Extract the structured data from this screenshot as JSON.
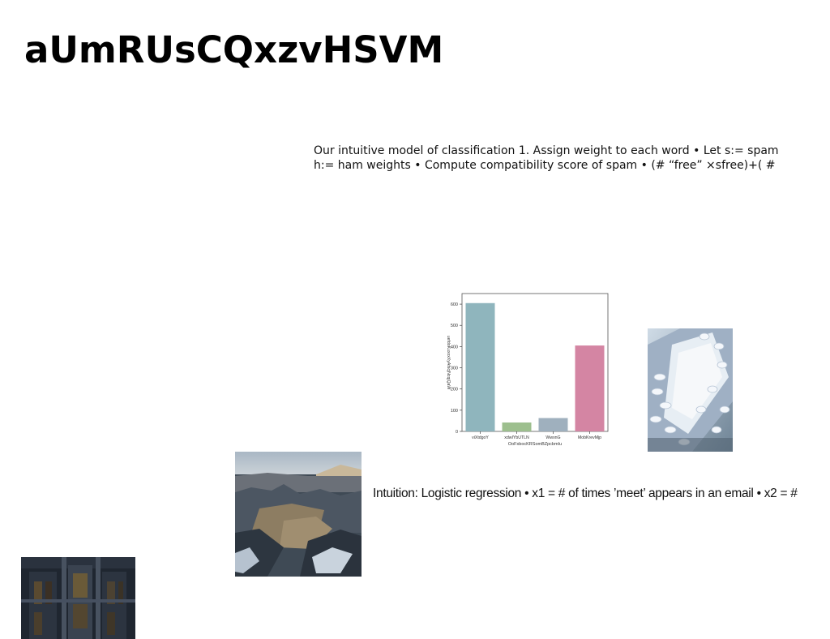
{
  "slide": {
    "title": "aUmRUsCQxzvHSVM",
    "paragraph": "Our intuitive model of classification 1. Assign weight to each word • Let s:= spam h:= ham weights • Compute compatibility score of spam • (# “free” ×sfree)+( #",
    "caption": "Intuition: Logistic regression • x1 = # of times ’meet’ appears in an email • x2 = #"
  },
  "chart_data": {
    "type": "bar",
    "categories": [
      "viXtdgoY",
      "xdwIYbUTLN",
      "WwxnG",
      "MobKrevMjp"
    ],
    "values": [
      605,
      42,
      63,
      405
    ],
    "colors": [
      "#8fb5bd",
      "#9dbf8e",
      "#9fb0be",
      "#d485a3"
    ],
    "xlabel": "OoFxbocKRSomBZpcbmIu",
    "ylabel": "uefdoKuxxxXyAfscjNcqjQaW",
    "ylim": [
      0,
      650
    ],
    "yticks": [
      0,
      100,
      200,
      300,
      400,
      500,
      600
    ],
    "grid": false
  },
  "images": {
    "pills": "pills-photo",
    "canyon": "canyon-landscape-photo",
    "building": "building-facade-photo"
  }
}
